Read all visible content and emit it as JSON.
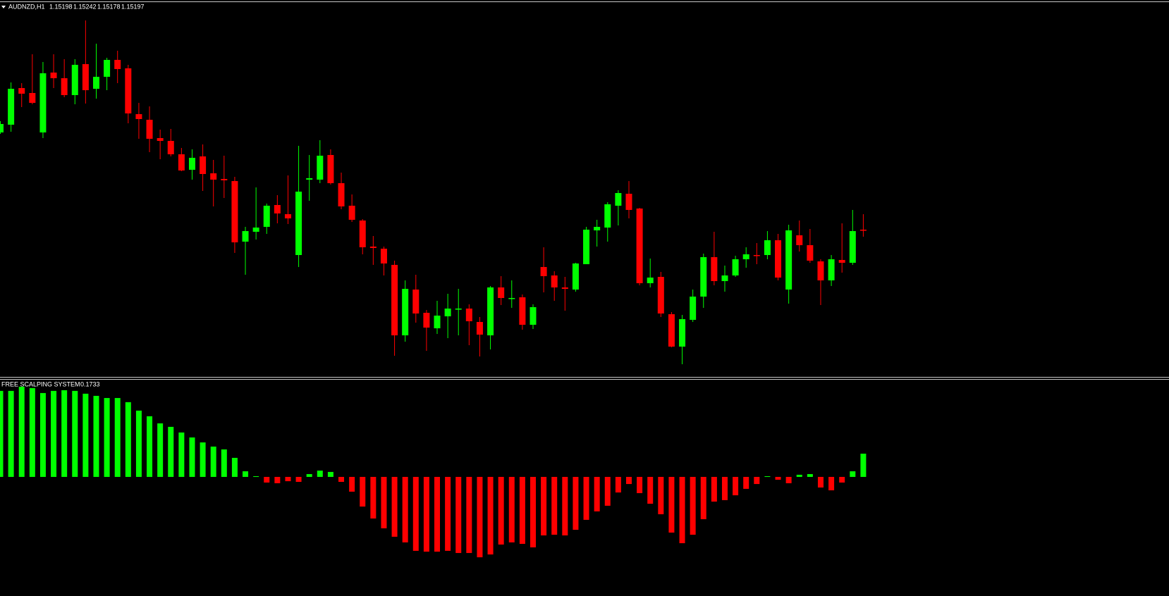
{
  "chart_data": [
    {
      "type": "candlestick",
      "title": "AUDNZD,H1",
      "up_color": "#00ff00",
      "down_color": "#ff0000",
      "wick_color": "#00ff00",
      "ylim": [
        1.1478,
        1.1582
      ],
      "open": [
        1.15474,
        1.15496,
        1.156,
        1.15586,
        1.15474,
        1.15644,
        1.15628,
        1.1558,
        1.15668,
        1.15598,
        1.15632,
        1.1568,
        1.15656,
        1.15526,
        1.1551,
        1.15458,
        1.1545,
        1.15412,
        1.15368,
        1.15406,
        1.15358,
        1.15342,
        1.15336,
        1.15164,
        1.15192,
        1.15206,
        1.15268,
        1.15242,
        1.15126,
        1.1534,
        1.1534,
        1.1541,
        1.1533,
        1.15266,
        1.15224,
        1.1515,
        1.15144,
        1.15098,
        1.14898,
        1.15028,
        1.14962,
        1.14918,
        1.14952,
        1.14972,
        1.14974,
        1.14936,
        1.14898,
        1.15034,
        1.15002,
        1.15006,
        1.14928,
        1.15092,
        1.15068,
        1.15034,
        1.15028,
        1.151,
        1.15196,
        1.15204,
        1.15266,
        1.153,
        1.15258,
        1.15046,
        1.15064,
        1.14958,
        1.14866,
        1.14942,
        1.15008,
        1.1512,
        1.15052,
        1.15068,
        1.15114,
        1.15126,
        1.15126,
        1.15168,
        1.15028,
        1.15182,
        1.15154,
        1.15108,
        1.15054,
        1.15112,
        1.15104,
        1.15198
      ],
      "high": [
        1.15506,
        1.15616,
        1.15614,
        1.15696,
        1.15674,
        1.15696,
        1.15682,
        1.15682,
        1.15792,
        1.15726,
        1.15686,
        1.15706,
        1.15666,
        1.15558,
        1.15548,
        1.15482,
        1.15484,
        1.1543,
        1.15426,
        1.1544,
        1.15396,
        1.15408,
        1.15348,
        1.15206,
        1.15318,
        1.15272,
        1.15296,
        1.15352,
        1.15436,
        1.1541,
        1.15452,
        1.15426,
        1.1536,
        1.15298,
        1.15228,
        1.1518,
        1.1515,
        1.1511,
        1.15054,
        1.1507,
        1.1497,
        1.14996,
        1.15016,
        1.1503,
        1.14986,
        1.1495,
        1.15038,
        1.15066,
        1.15054,
        1.15014,
        1.14986,
        1.15148,
        1.1508,
        1.15064,
        1.15104,
        1.15206,
        1.15226,
        1.15276,
        1.1531,
        1.15336,
        1.1526,
        1.15116,
        1.15078,
        1.14964,
        1.14956,
        1.15028,
        1.1513,
        1.15192,
        1.15096,
        1.15124,
        1.15148,
        1.1516,
        1.15194,
        1.15186,
        1.15212,
        1.15224,
        1.152,
        1.15114,
        1.15126,
        1.15216,
        1.15254,
        1.15242
      ],
      "low": [
        1.1547,
        1.15476,
        1.15546,
        1.15554,
        1.15458,
        1.156,
        1.15574,
        1.15554,
        1.15556,
        1.1557,
        1.15594,
        1.15614,
        1.155,
        1.15456,
        1.15418,
        1.15398,
        1.15406,
        1.15364,
        1.1534,
        1.15308,
        1.15264,
        1.15288,
        1.15132,
        1.1507,
        1.1517,
        1.15186,
        1.15216,
        1.15214,
        1.15092,
        1.1528,
        1.1533,
        1.15326,
        1.15256,
        1.1522,
        1.15128,
        1.15098,
        1.15068,
        1.1484,
        1.1488,
        1.14934,
        1.14854,
        1.14902,
        1.1489,
        1.14898,
        1.1487,
        1.14838,
        1.14858,
        1.14984,
        1.14976,
        1.14914,
        1.14916,
        1.1502,
        1.14996,
        1.14968,
        1.15022,
        1.151,
        1.1515,
        1.15164,
        1.1521,
        1.1523,
        1.1504,
        1.15034,
        1.1495,
        1.14864,
        1.14816,
        1.14936,
        1.14976,
        1.1504,
        1.15022,
        1.15064,
        1.1509,
        1.151,
        1.15114,
        1.15054,
        1.14988,
        1.15136,
        1.15104,
        1.14984,
        1.15038,
        1.15076,
        1.15098,
        1.15178
      ],
      "close": [
        1.15498,
        1.15598,
        1.15584,
        1.15558,
        1.15642,
        1.15628,
        1.1558,
        1.15666,
        1.15594,
        1.15632,
        1.1568,
        1.15654,
        1.15528,
        1.15512,
        1.15456,
        1.1545,
        1.15412,
        1.15366,
        1.15402,
        1.15356,
        1.1534,
        1.15338,
        1.15162,
        1.15194,
        1.15204,
        1.15266,
        1.15244,
        1.1523,
        1.15306,
        1.15344,
        1.15408,
        1.1533,
        1.15264,
        1.15226,
        1.15148,
        1.15146,
        1.15102,
        1.14898,
        1.1503,
        1.1496,
        1.1492,
        1.14954,
        1.14974,
        1.14974,
        1.14938,
        1.149,
        1.15034,
        1.15004,
        1.15004,
        1.14928,
        1.14978,
        1.15066,
        1.15034,
        1.1503,
        1.15102,
        1.15198,
        1.15206,
        1.1527,
        1.15302,
        1.15254,
        1.15046,
        1.15062,
        1.1496,
        1.14866,
        1.14944,
        1.15008,
        1.1512,
        1.15052,
        1.15068,
        1.15114,
        1.15128,
        1.15124,
        1.15168,
        1.15062,
        1.15196,
        1.15154,
        1.1511,
        1.15054,
        1.15114,
        1.15104,
        1.15194,
        1.15197
      ]
    },
    {
      "type": "bar",
      "title": "FREE SCALPING SYSTEM",
      "positive_color": "#00ff00",
      "negative_color": "#ff0000",
      "ylim": [
        -0.646,
        0.719
      ],
      "values": [
        0.641,
        0.641,
        0.672,
        0.662,
        0.625,
        0.641,
        0.646,
        0.641,
        0.62,
        0.604,
        0.588,
        0.588,
        0.557,
        0.494,
        0.452,
        0.399,
        0.373,
        0.331,
        0.294,
        0.257,
        0.226,
        0.205,
        0.142,
        0.042,
        0.005,
        -0.042,
        -0.047,
        -0.032,
        -0.037,
        0.021,
        0.047,
        0.037,
        -0.037,
        -0.11,
        -0.221,
        -0.31,
        -0.383,
        -0.446,
        -0.488,
        -0.551,
        -0.557,
        -0.557,
        -0.551,
        -0.567,
        -0.567,
        -0.599,
        -0.578,
        -0.504,
        -0.488,
        -0.499,
        -0.525,
        -0.436,
        -0.431,
        -0.436,
        -0.394,
        -0.32,
        -0.257,
        -0.215,
        -0.116,
        -0.053,
        -0.121,
        -0.2,
        -0.278,
        -0.415,
        -0.494,
        -0.431,
        -0.315,
        -0.184,
        -0.173,
        -0.137,
        -0.089,
        -0.053,
        0.005,
        -0.021,
        -0.047,
        0.016,
        0.021,
        -0.079,
        -0.1,
        -0.042,
        0.042,
        0.1733
      ]
    }
  ]
}
